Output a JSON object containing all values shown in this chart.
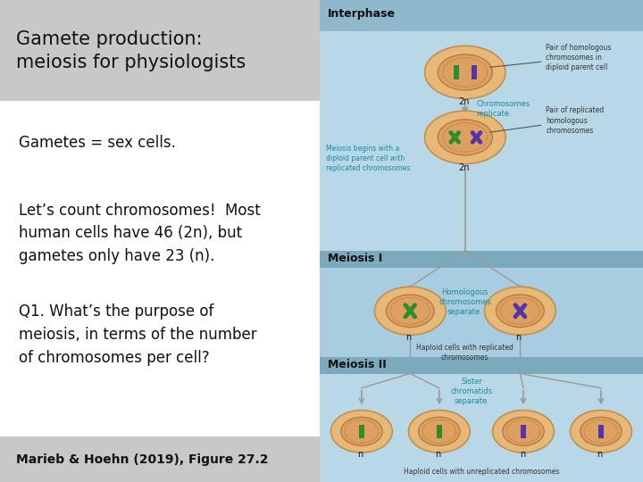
{
  "title": "Gamete production:\nmeiosis for physiologists",
  "title_bg": "#c8c8c8",
  "title_fontsize": 15,
  "title_color": "#111111",
  "body_text1": "Gametes = sex cells.",
  "body_text2": "Let’s count chromosomes!  Most\nhuman cells have 46 (2n), but\ngametes only have 23 (n).",
  "body_text3": "Q1. What’s the purpose of\nmeiosis, in terms of the number\nof chromosomes per cell?",
  "footer": "Marieb & Hoehn (2019), Figure 27.2",
  "footer_bg": "#c8c8c8",
  "body_fontsize": 12,
  "footer_fontsize": 10,
  "left_bg": "#ffffff",
  "interphase_header_bg": "#90b8cc",
  "interphase_body_bg": "#b8d8e8",
  "meiosis1_header_bg": "#7aaabb",
  "meiosis1_body_bg": "#a8cce0",
  "meiosis2_header_bg": "#7aaabb",
  "meiosis2_body_bg": "#b8d8e8",
  "cell_outer": "#e8b878",
  "cell_border": "#c09050",
  "nucleus_color": "#dda060",
  "nucleus_border": "#b07840",
  "green_chr": "#2d8c2d",
  "purple_chr": "#5533aa",
  "arrow_color": "#999999",
  "teal_label": "#1a8a9a",
  "black_text": "#111111",
  "ann_text": "#333333"
}
